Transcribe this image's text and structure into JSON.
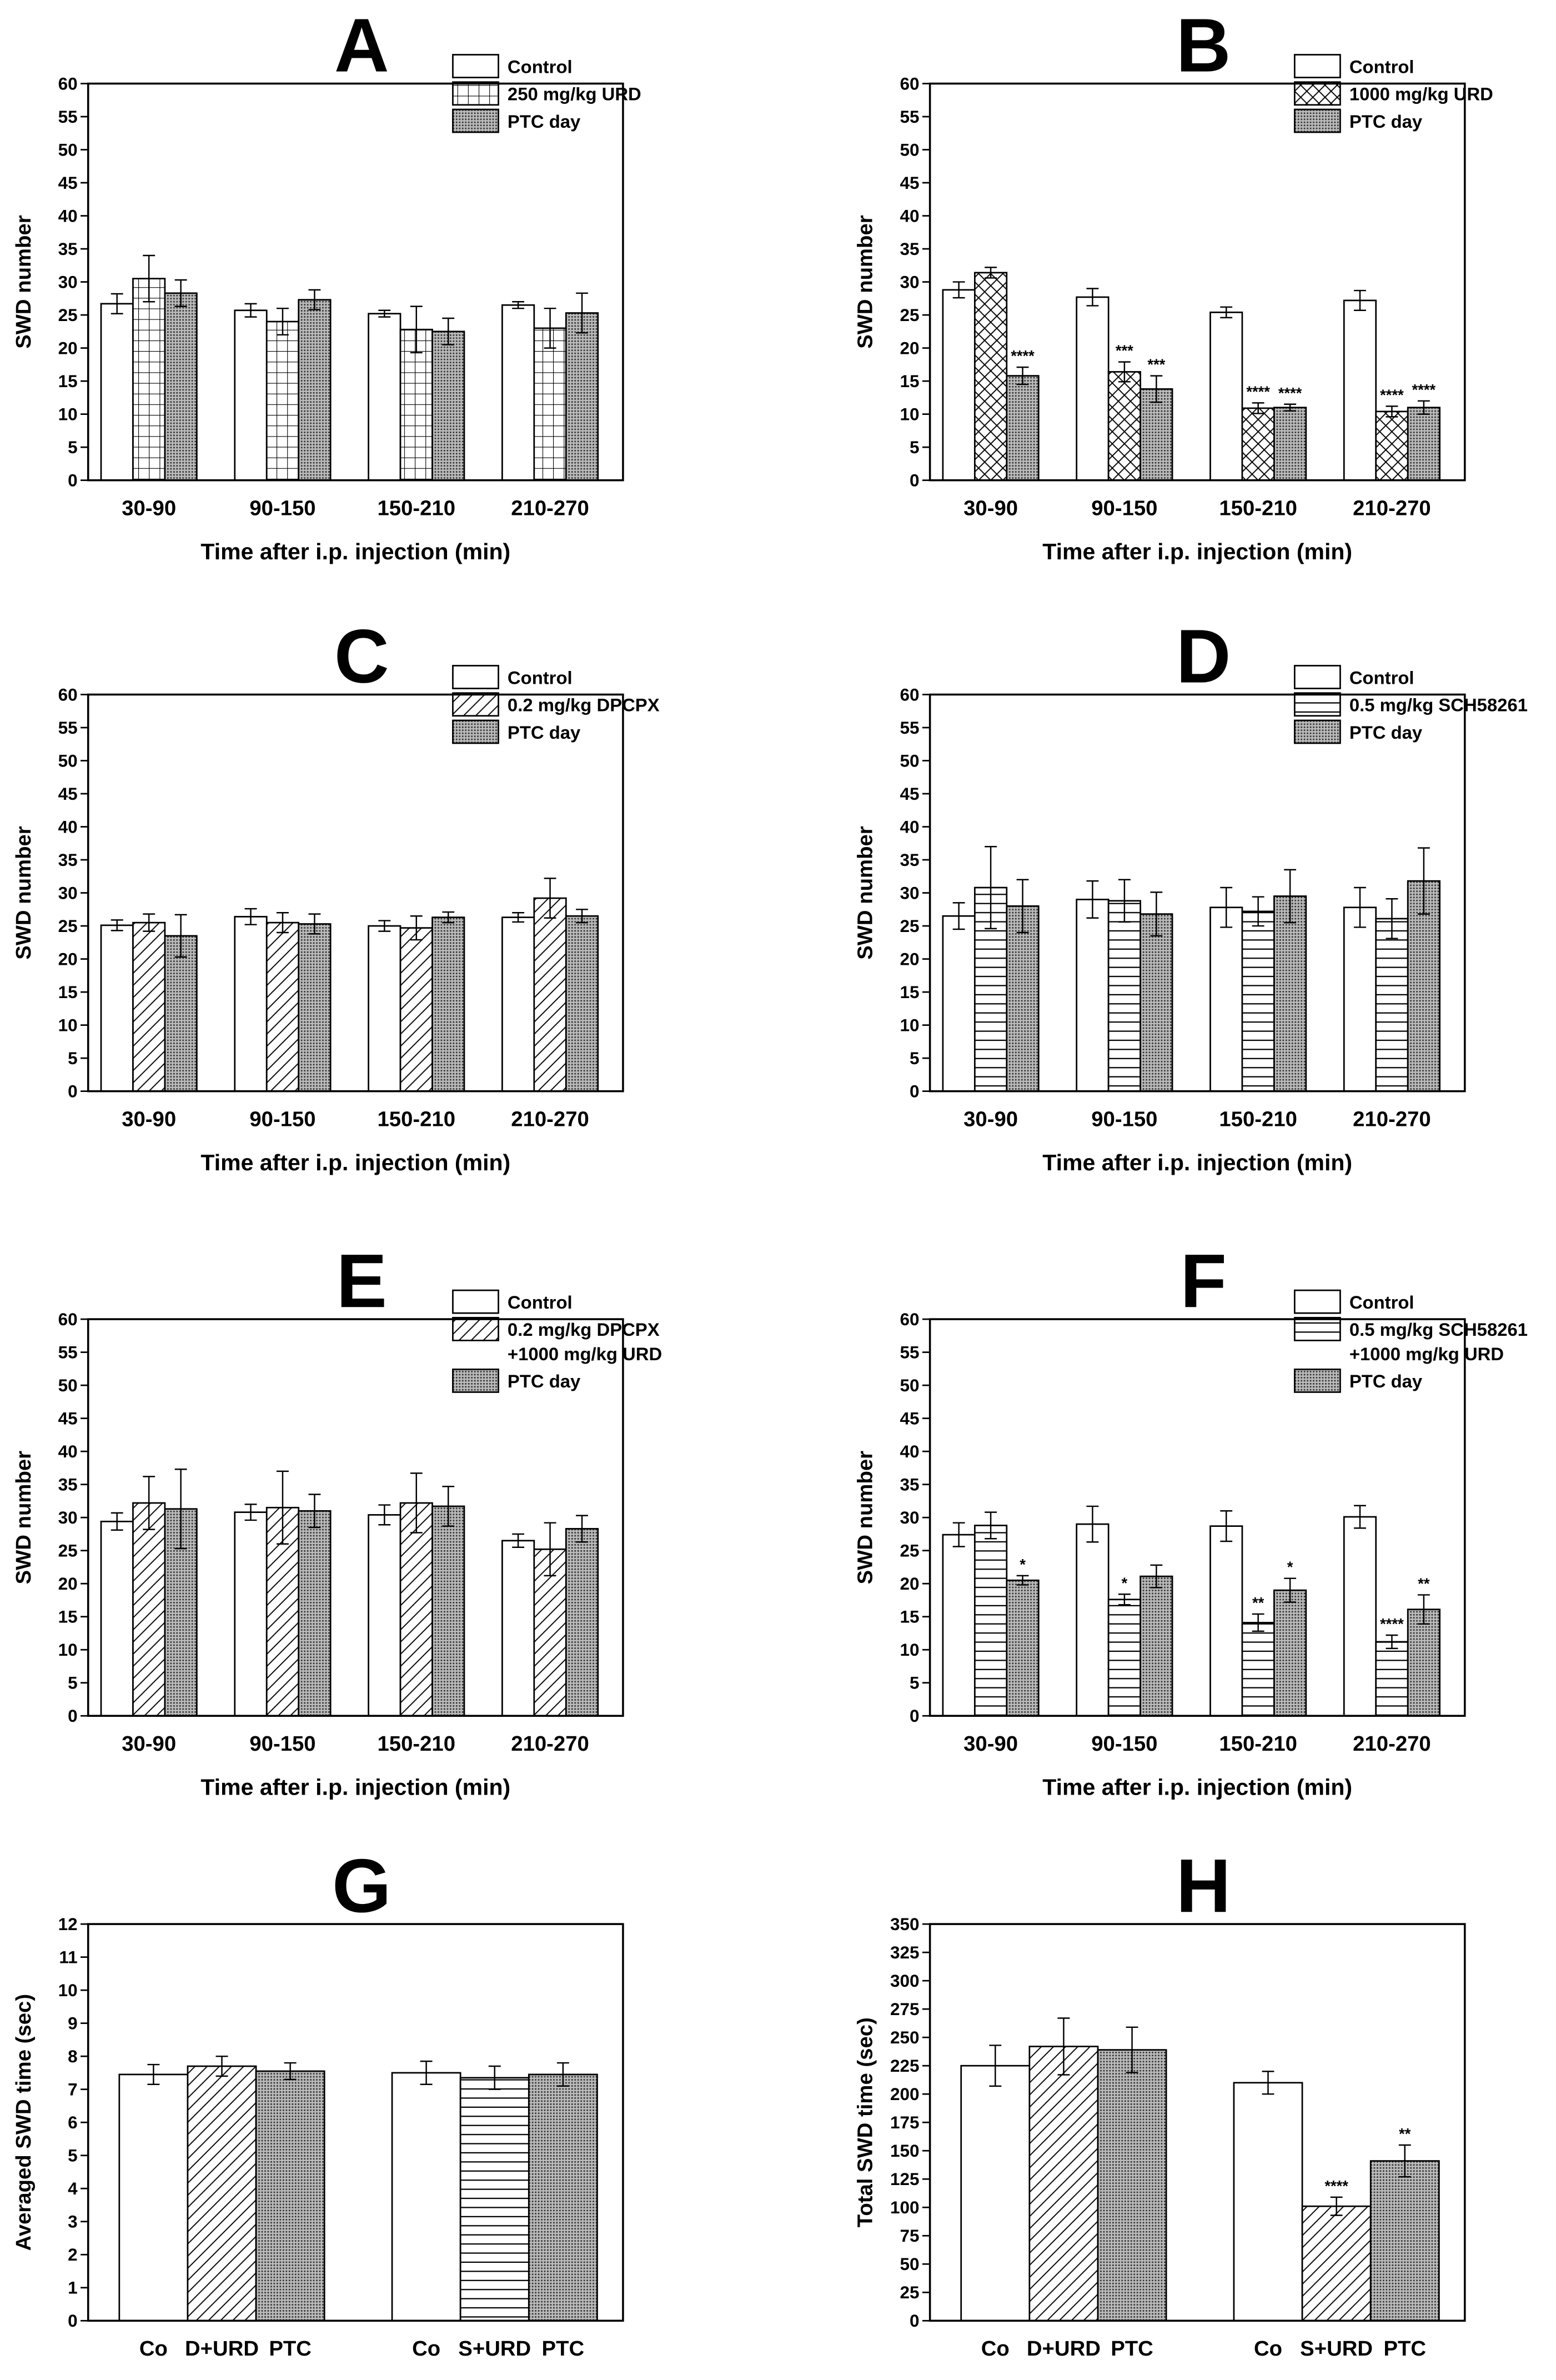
{
  "chart_data": [
    {
      "type": "bar",
      "title": "A",
      "xlabel": "Time after i.p. injection (min)",
      "ylabel": "SWD number",
      "categories": [
        "30-90",
        "90-150",
        "150-210",
        "210-270"
      ],
      "ylim": [
        0,
        60
      ],
      "yticks": [
        0,
        5,
        10,
        15,
        20,
        25,
        30,
        35,
        40,
        45,
        50,
        55,
        60
      ],
      "series": [
        {
          "name": "Control",
          "pattern": "none",
          "values": [
            26.7,
            25.7,
            25.2,
            26.5
          ],
          "errors": [
            1.5,
            1.0,
            0.5,
            0.5
          ]
        },
        {
          "name": "250 mg/kg URD",
          "pattern": "grid",
          "values": [
            30.5,
            24.0,
            22.8,
            23.0
          ],
          "errors": [
            3.5,
            2.0,
            3.5,
            3.0
          ]
        },
        {
          "name": "PTC day",
          "pattern": "dots",
          "values": [
            28.3,
            27.3,
            22.5,
            25.3
          ],
          "errors": [
            2.0,
            1.5,
            2.0,
            3.0
          ]
        }
      ]
    },
    {
      "type": "bar",
      "title": "B",
      "xlabel": "Time after i.p. injection (min)",
      "ylabel": "SWD number",
      "categories": [
        "30-90",
        "90-150",
        "150-210",
        "210-270"
      ],
      "ylim": [
        0,
        60
      ],
      "yticks": [
        0,
        5,
        10,
        15,
        20,
        25,
        30,
        35,
        40,
        45,
        50,
        55,
        60
      ],
      "series": [
        {
          "name": "Control",
          "pattern": "none",
          "values": [
            28.8,
            27.7,
            25.4,
            27.2
          ],
          "errors": [
            1.2,
            1.3,
            0.8,
            1.5
          ]
        },
        {
          "name": "1000 mg/kg URD",
          "pattern": "crosshatch",
          "values": [
            31.4,
            16.4,
            10.9,
            10.4
          ],
          "errors": [
            0.8,
            1.5,
            0.8,
            0.8
          ],
          "annotations": [
            null,
            "***",
            "****",
            "****"
          ]
        },
        {
          "name": "PTC day",
          "pattern": "dots",
          "values": [
            15.8,
            13.8,
            11.0,
            11.0
          ],
          "errors": [
            1.3,
            2.0,
            0.5,
            1.0
          ],
          "annotations": [
            "****",
            "***",
            "****",
            "****"
          ]
        }
      ]
    },
    {
      "type": "bar",
      "title": "C",
      "xlabel": "Time after i.p. injection (min)",
      "ylabel": "SWD number",
      "categories": [
        "30-90",
        "90-150",
        "150-210",
        "210-270"
      ],
      "ylim": [
        0,
        60
      ],
      "yticks": [
        0,
        5,
        10,
        15,
        20,
        25,
        30,
        35,
        40,
        45,
        50,
        55,
        60
      ],
      "series": [
        {
          "name": "Control",
          "pattern": "none",
          "values": [
            25.1,
            26.4,
            25.0,
            26.3
          ],
          "errors": [
            0.8,
            1.2,
            0.8,
            0.7
          ]
        },
        {
          "name": "0.2 mg/kg DPCPX",
          "pattern": "diagonal",
          "values": [
            25.5,
            25.5,
            24.7,
            29.2
          ],
          "errors": [
            1.3,
            1.5,
            1.8,
            3.0
          ]
        },
        {
          "name": "PTC day",
          "pattern": "dots",
          "values": [
            23.5,
            25.3,
            26.3,
            26.5
          ],
          "errors": [
            3.2,
            1.5,
            0.8,
            1.0
          ]
        }
      ]
    },
    {
      "type": "bar",
      "title": "D",
      "xlabel": "Time after i.p. injection (min)",
      "ylabel": "SWD number",
      "categories": [
        "30-90",
        "90-150",
        "150-210",
        "210-270"
      ],
      "ylim": [
        0,
        60
      ],
      "yticks": [
        0,
        5,
        10,
        15,
        20,
        25,
        30,
        35,
        40,
        45,
        50,
        55,
        60
      ],
      "series": [
        {
          "name": "Control",
          "pattern": "none",
          "values": [
            26.5,
            29.0,
            27.8,
            27.8
          ],
          "errors": [
            2.0,
            2.8,
            3.0,
            3.0
          ]
        },
        {
          "name": "0.5 mg/kg SCH58261",
          "pattern": "horizontal",
          "values": [
            30.8,
            28.8,
            27.2,
            26.1
          ],
          "errors": [
            6.2,
            3.2,
            2.2,
            3.0
          ]
        },
        {
          "name": "PTC day",
          "pattern": "dots",
          "values": [
            28.0,
            26.8,
            29.5,
            31.8
          ],
          "errors": [
            4.0,
            3.3,
            4.0,
            5.0
          ]
        }
      ]
    },
    {
      "type": "bar",
      "title": "E",
      "xlabel": "Time after i.p. injection (min)",
      "ylabel": "SWD number",
      "categories": [
        "30-90",
        "90-150",
        "150-210",
        "210-270"
      ],
      "ylim": [
        0,
        60
      ],
      "yticks": [
        0,
        5,
        10,
        15,
        20,
        25,
        30,
        35,
        40,
        45,
        50,
        55,
        60
      ],
      "series": [
        {
          "name": "Control",
          "pattern": "none",
          "values": [
            29.4,
            30.8,
            30.4,
            26.5
          ],
          "errors": [
            1.3,
            1.2,
            1.5,
            1.0
          ]
        },
        {
          "name": [
            "0.2 mg/kg DPCPX",
            "+1000 mg/kg URD"
          ],
          "pattern": "diagonal",
          "values": [
            32.2,
            31.5,
            32.2,
            25.2
          ],
          "errors": [
            4.0,
            5.5,
            4.5,
            4.0
          ]
        },
        {
          "name": "PTC day",
          "pattern": "dots",
          "values": [
            31.3,
            31.0,
            31.7,
            28.3
          ],
          "errors": [
            6.0,
            2.5,
            3.0,
            2.0
          ]
        }
      ]
    },
    {
      "type": "bar",
      "title": "F",
      "xlabel": "Time after i.p. injection (min)",
      "ylabel": "SWD number",
      "categories": [
        "30-90",
        "90-150",
        "150-210",
        "210-270"
      ],
      "ylim": [
        0,
        60
      ],
      "yticks": [
        0,
        5,
        10,
        15,
        20,
        25,
        30,
        35,
        40,
        45,
        50,
        55,
        60
      ],
      "series": [
        {
          "name": "Control",
          "pattern": "none",
          "values": [
            27.4,
            29.0,
            28.7,
            30.1
          ],
          "errors": [
            1.8,
            2.7,
            2.3,
            1.7
          ]
        },
        {
          "name": [
            "0.5 mg/kg SCH58261",
            "+1000 mg/kg URD"
          ],
          "pattern": "horizontal",
          "values": [
            28.8,
            17.6,
            14.1,
            11.2
          ],
          "errors": [
            2.0,
            0.8,
            1.3,
            1.0
          ],
          "annotations": [
            null,
            "*",
            "**",
            "****"
          ]
        },
        {
          "name": "PTC day",
          "pattern": "dots",
          "values": [
            20.5,
            21.1,
            19.0,
            16.1
          ],
          "errors": [
            0.7,
            1.7,
            1.8,
            2.2
          ],
          "annotations": [
            "*",
            null,
            "*",
            "**"
          ]
        }
      ]
    },
    {
      "type": "bar",
      "title": "G",
      "ylabel": "Averaged SWD time (sec)",
      "categories": [
        "Co",
        "D+URD",
        "PTC",
        "Co",
        "S+URD",
        "PTC"
      ],
      "ylim": [
        0,
        12
      ],
      "yticks": [
        0,
        1,
        2,
        3,
        4,
        5,
        6,
        7,
        8,
        9,
        10,
        11,
        12
      ],
      "values": [
        7.45,
        7.7,
        7.55,
        7.5,
        7.35,
        7.45
      ],
      "errors": [
        0.3,
        0.3,
        0.25,
        0.35,
        0.35,
        0.35
      ],
      "patterns": [
        "none",
        "diagonal",
        "dots",
        "none",
        "horizontal",
        "dots"
      ]
    },
    {
      "type": "bar",
      "title": "H",
      "ylabel": "Total SWD time (sec)",
      "categories": [
        "Co",
        "D+URD",
        "PTC",
        "Co",
        "S+URD",
        "PTC"
      ],
      "ylim": [
        0,
        350
      ],
      "yticks": [
        0,
        25,
        50,
        75,
        100,
        125,
        150,
        175,
        200,
        225,
        250,
        275,
        300,
        325,
        350
      ],
      "values": [
        225,
        242,
        239,
        210,
        101,
        141
      ],
      "errors": [
        18,
        25,
        20,
        10,
        8,
        14
      ],
      "patterns": [
        "none",
        "diagonal",
        "dots",
        "none",
        "diagonal",
        "dots"
      ],
      "annotations": [
        null,
        null,
        null,
        null,
        "****",
        "**"
      ]
    }
  ]
}
